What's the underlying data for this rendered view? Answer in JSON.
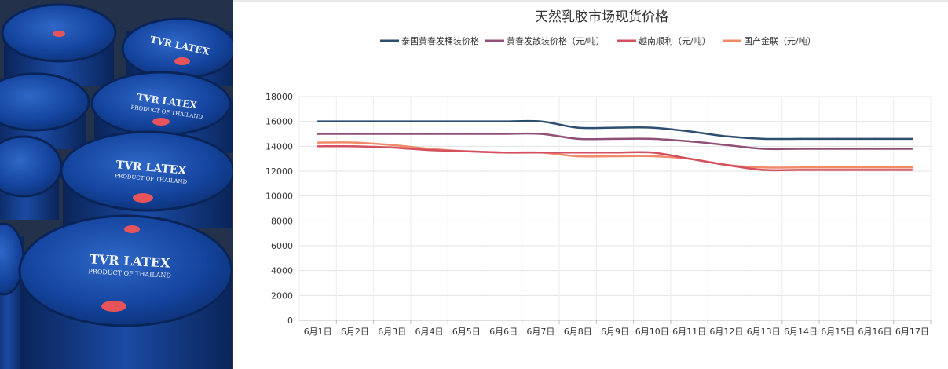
{
  "chart_data": {
    "type": "line",
    "title": "天然乳胶市场现货价格",
    "categories": [
      "6月1日",
      "6月2日",
      "6月3日",
      "6月4日",
      "6月5日",
      "6月6日",
      "6月7日",
      "6月8日",
      "6月9日",
      "6月10日",
      "6月11日",
      "6月12日",
      "6月13日",
      "6月14日",
      "6月15日",
      "6月16日",
      "6月17日"
    ],
    "ylim": [
      0,
      18000
    ],
    "yticks": [
      0,
      2000,
      4000,
      6000,
      8000,
      10000,
      12000,
      14000,
      16000,
      18000
    ],
    "grid": true,
    "legend_position": "top",
    "series": [
      {
        "name": "泰国黄春发桶装价格",
        "color": "#2e4e70",
        "values": [
          16000,
          16000,
          16000,
          16000,
          16000,
          16000,
          16000,
          15500,
          15500,
          15500,
          15200,
          14800,
          14600,
          14600,
          14600,
          14600,
          14600
        ]
      },
      {
        "name": "黄春发散装价格（元/吨）",
        "color": "#8f4f77",
        "values": [
          15000,
          15000,
          15000,
          15000,
          15000,
          15000,
          15000,
          14600,
          14600,
          14600,
          14400,
          14100,
          13800,
          13800,
          13800,
          13800,
          13800
        ]
      },
      {
        "name": "越南顺利（元/吨）",
        "color": "#d2505f",
        "values": [
          14000,
          14000,
          13900,
          13700,
          13600,
          13500,
          13500,
          13500,
          13500,
          13500,
          13000,
          12500,
          12100,
          12100,
          12100,
          12100,
          12100
        ]
      },
      {
        "name": "国产金联（元/吨）",
        "color": "#f08a68",
        "values": [
          14300,
          14300,
          14100,
          13800,
          13600,
          13500,
          13500,
          13200,
          13200,
          13200,
          13000,
          12500,
          12300,
          12300,
          12300,
          12300,
          12300
        ]
      }
    ]
  },
  "photo": {
    "barrel_label_line1": "TVR LATEX",
    "barrel_label_line2": "PRODUCT OF THAILAND"
  }
}
